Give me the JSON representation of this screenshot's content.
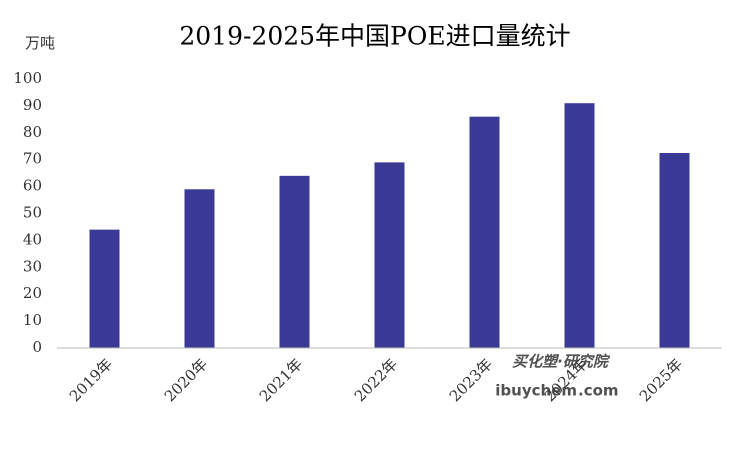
{
  "chart_data": {
    "type": "bar",
    "title": "2019-2025年中国POE进口量统计",
    "y_label": "万吨",
    "categories": [
      "2019年",
      "2020年",
      "2021年",
      "2022年",
      "2023年",
      "2024年",
      "2025年"
    ],
    "values": [
      44,
      59,
      64,
      69,
      86,
      91,
      72.5
    ],
    "color": "#3a3a96",
    "ylim": [
      0,
      100
    ],
    "yticks": [
      0,
      10,
      20,
      30,
      40,
      50,
      60,
      70,
      80,
      90,
      100
    ],
    "grid": false
  },
  "watermark": {
    "brand": "买化塑·研究院",
    "site": "ibuychem",
    "domain": ".com"
  }
}
